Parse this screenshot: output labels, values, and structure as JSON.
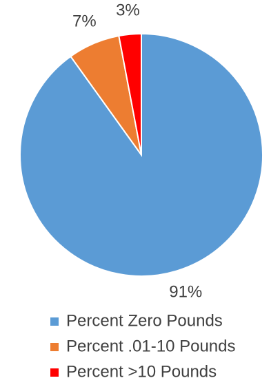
{
  "chart_data": {
    "type": "pie",
    "categories": [
      "Percent Zero Pounds",
      "Percent .01-10 Pounds",
      "Percent >10 Pounds"
    ],
    "values": [
      91,
      7,
      3
    ],
    "value_labels": [
      "91%",
      "7%",
      "3%"
    ],
    "colors": [
      "#5b9bd5",
      "#ed7d31",
      "#ff0000"
    ],
    "legend": "bottom"
  }
}
